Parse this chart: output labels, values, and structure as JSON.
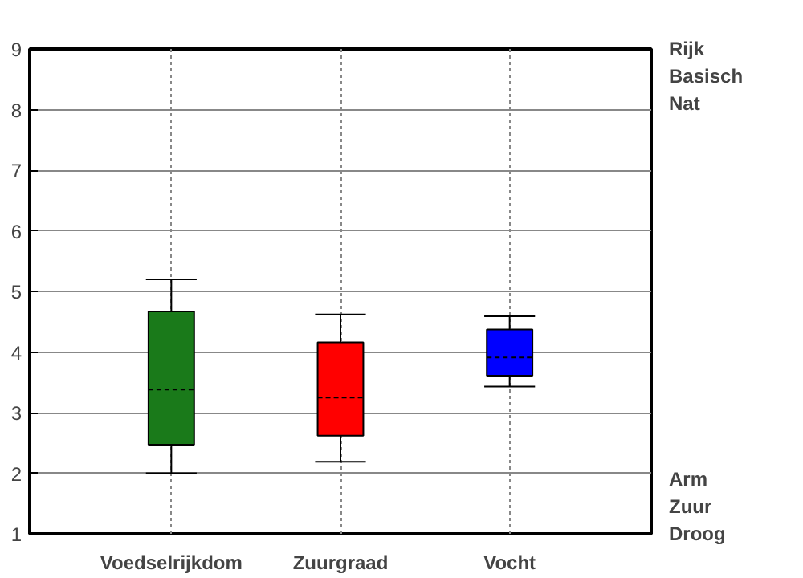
{
  "chart_data": {
    "type": "box",
    "categories": [
      "Voedselrijkdom",
      "Zuurgraad",
      "Vocht"
    ],
    "colors": [
      "#1a7a1a",
      "#ff0000",
      "#0000ff"
    ],
    "boxes": [
      {
        "low": 2.0,
        "q1": 2.47,
        "median": 3.38,
        "q3": 4.67,
        "high": 5.2
      },
      {
        "low": 2.19,
        "q1": 2.62,
        "median": 3.25,
        "q3": 4.16,
        "high": 4.62
      },
      {
        "low": 3.43,
        "q1": 3.61,
        "median": 3.91,
        "q3": 4.37,
        "high": 4.59
      }
    ],
    "ylim": [
      1,
      9
    ],
    "yticks": [
      1,
      2,
      3,
      4,
      5,
      6,
      7,
      8,
      9
    ],
    "grid": true,
    "annotations": [
      "Rijk",
      "Basisch",
      "Nat",
      "Arm",
      "Zuur",
      "Droog"
    ]
  }
}
